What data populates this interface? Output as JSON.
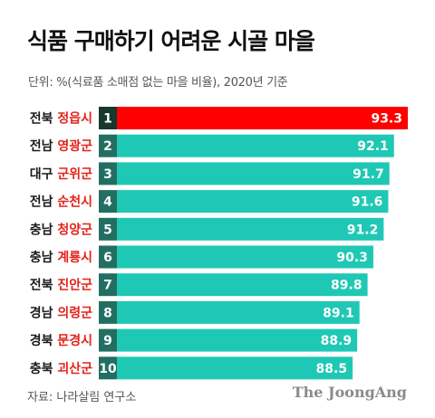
{
  "header": {
    "title": "식품 구매하기 어려운 시골 마을",
    "subtitle": "단위: %(식료품 소매점 없는 마을 비율), 2020년 기준"
  },
  "footer": {
    "source": "자료: 나라살림 연구소",
    "brand": "The JoongAng"
  },
  "colors": {
    "top_bar": "#ff0000",
    "bar": "#1fc8b4",
    "top_rank_box": "#17382c",
    "rank_box": "#236e62"
  },
  "chart_data": {
    "type": "bar",
    "orientation": "horizontal",
    "xlim": [
      0,
      93.3
    ],
    "categories": [
      {
        "rank": "1",
        "region": "전북",
        "name": "정읍시"
      },
      {
        "rank": "2",
        "region": "전남",
        "name": "영광군"
      },
      {
        "rank": "3",
        "region": "대구",
        "name": "군위군"
      },
      {
        "rank": "4",
        "region": "전남",
        "name": "순천시"
      },
      {
        "rank": "5",
        "region": "충남",
        "name": "청양군"
      },
      {
        "rank": "6",
        "region": "충남",
        "name": "계룡시"
      },
      {
        "rank": "7",
        "region": "전북",
        "name": "진안군"
      },
      {
        "rank": "8",
        "region": "경남",
        "name": "의령군"
      },
      {
        "rank": "9",
        "region": "경북",
        "name": "문경시"
      },
      {
        "rank": "10",
        "region": "충북",
        "name": "괴산군"
      }
    ],
    "values": [
      93.3,
      92.1,
      91.7,
      91.6,
      91.2,
      90.3,
      89.8,
      89.1,
      88.9,
      88.5
    ],
    "value_labels": [
      "93.3",
      "92.1",
      "91.7",
      "91.6",
      "91.2",
      "90.3",
      "89.8",
      "89.1",
      "88.9",
      "88.5"
    ]
  }
}
